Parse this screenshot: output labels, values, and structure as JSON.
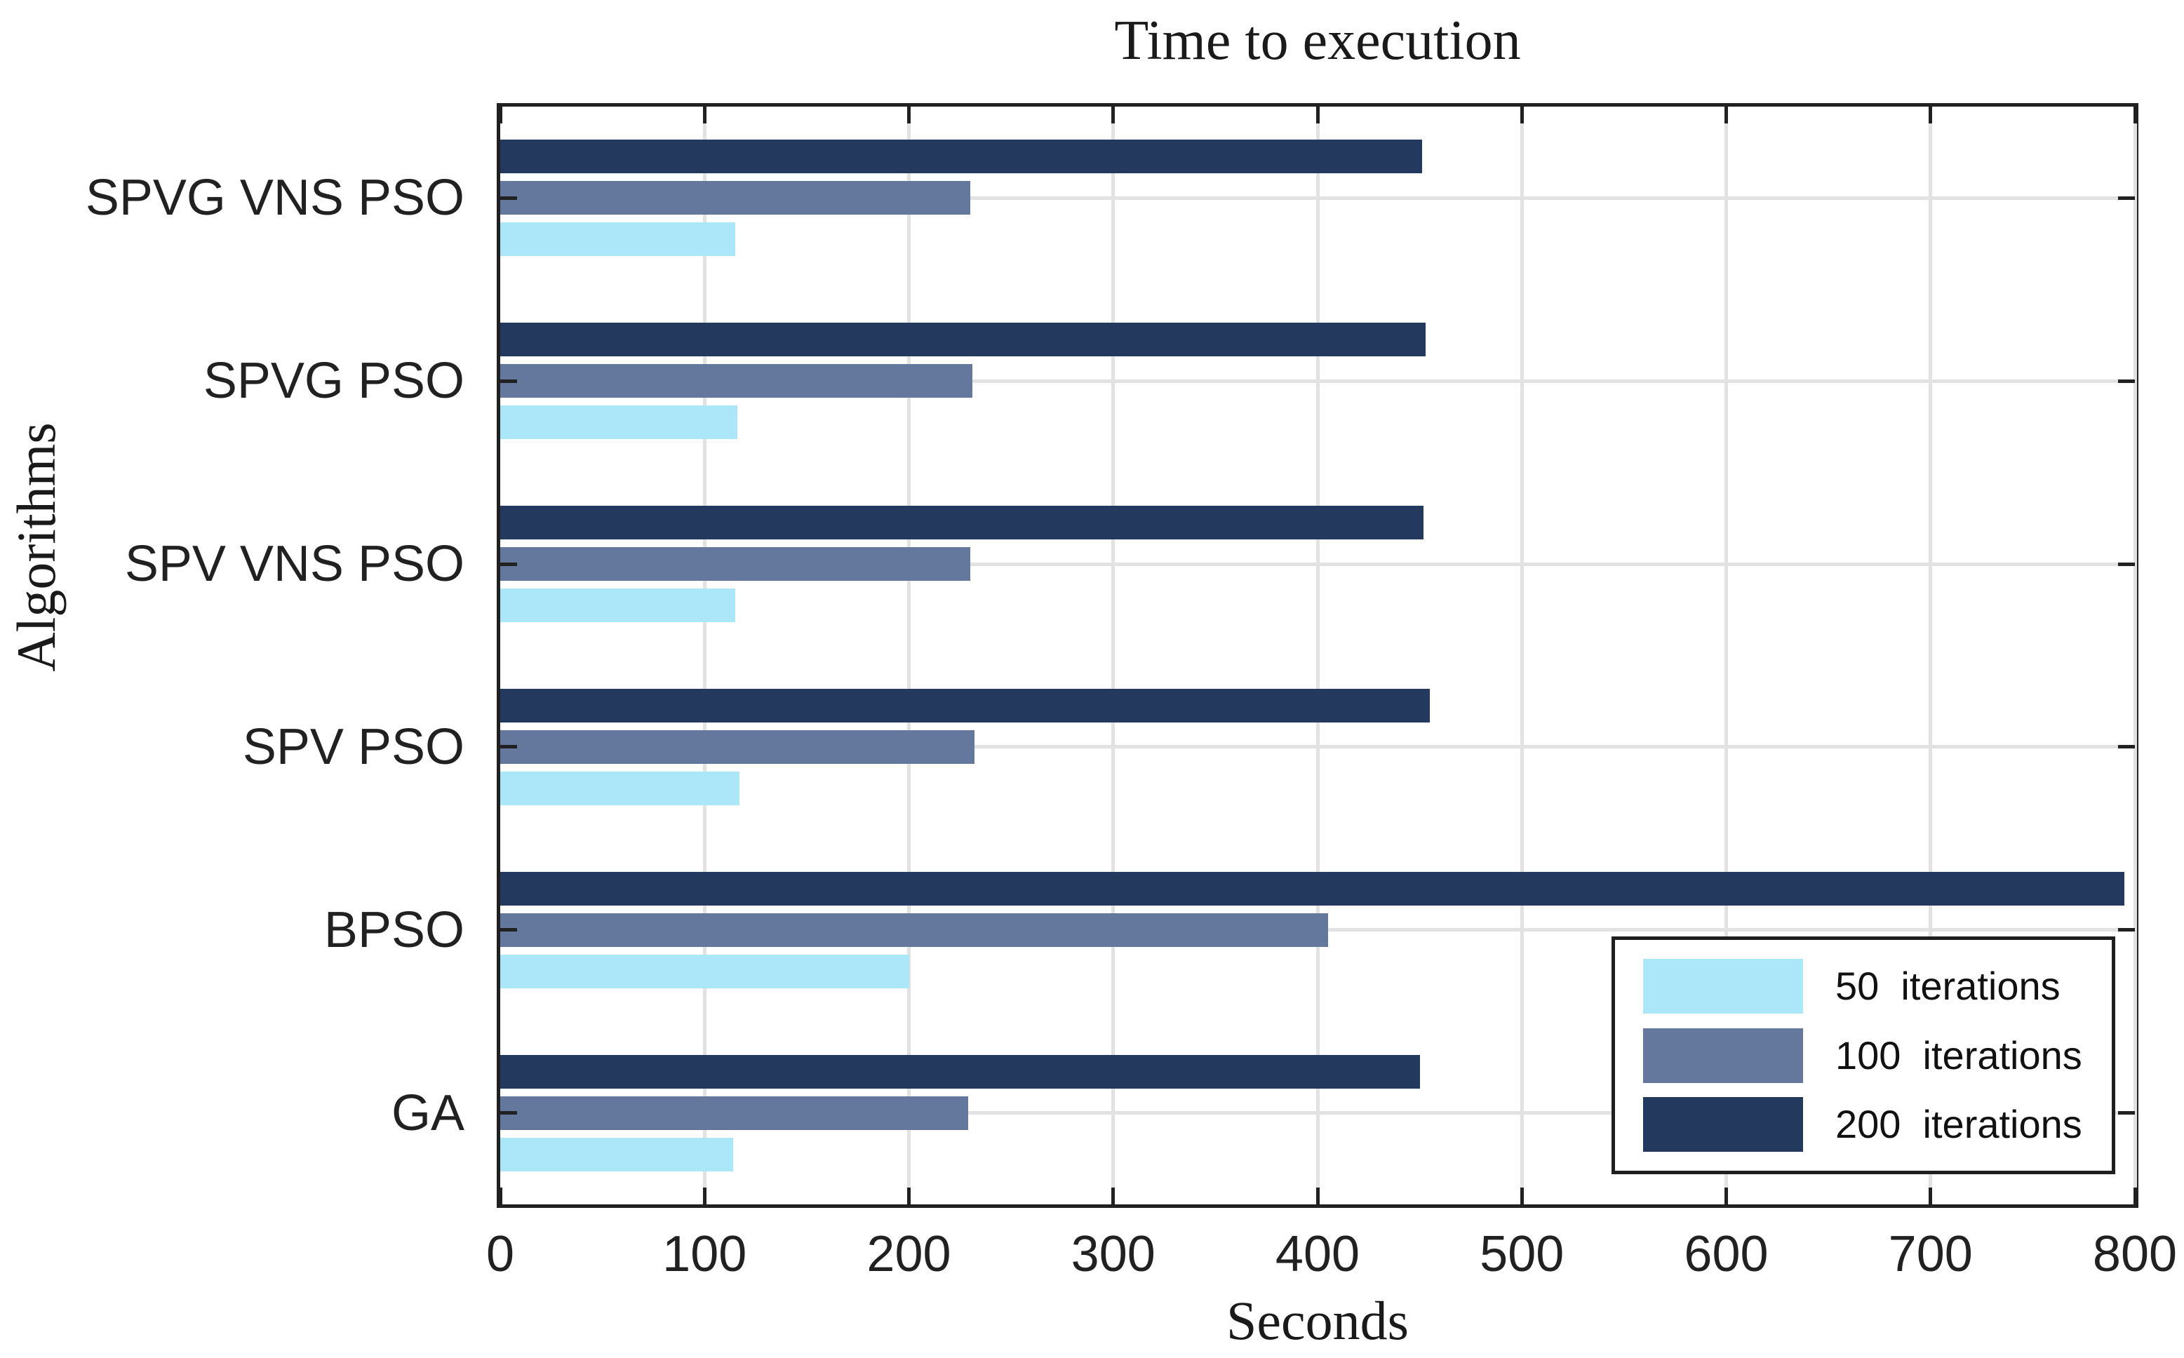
{
  "title": "Time to execution",
  "chart_data": {
    "type": "bar",
    "orientation": "horizontal",
    "title": "Time to execution",
    "xlabel": "Seconds",
    "ylabel": "Algorithms",
    "xlim": [
      0,
      800
    ],
    "x_ticks": [
      0,
      100,
      200,
      300,
      400,
      500,
      600,
      700,
      800
    ],
    "grid": true,
    "legend_position": "inside lower-right",
    "categories": [
      "SPVG VNS PSO",
      "SPVG PSO",
      "SPV VNS PSO",
      "SPV PSO",
      "BPSO",
      "GA"
    ],
    "series": [
      {
        "name": "50  iterations",
        "color": "#ABE7F8",
        "values": [
          115,
          116,
          115,
          117,
          200,
          114
        ]
      },
      {
        "name": "100  iterations",
        "color": "#64789E",
        "values": [
          230,
          231,
          230,
          232,
          405,
          229
        ]
      },
      {
        "name": "200  iterations",
        "color": "#24395E",
        "values": [
          451,
          453,
          452,
          455,
          795,
          450
        ]
      }
    ]
  }
}
